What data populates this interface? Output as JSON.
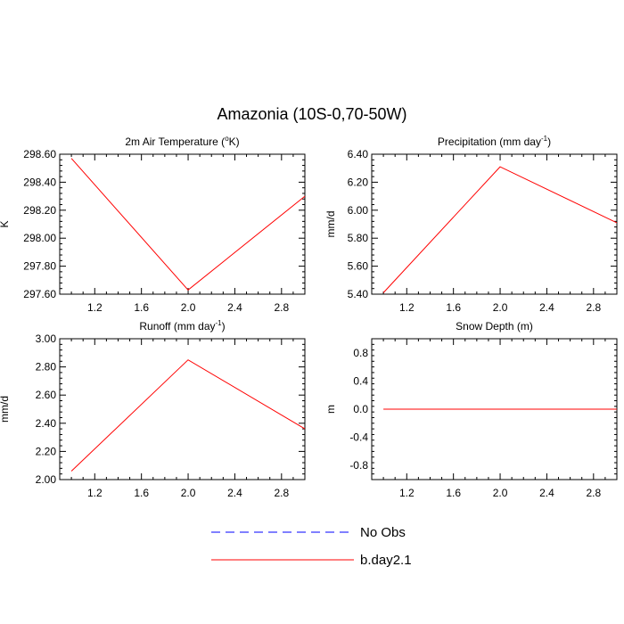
{
  "title": "Amazonia (10S-0,70-50W)",
  "chart_data": [
    {
      "type": "line",
      "title": "2m Air Temperature (°K)",
      "title_parts": [
        "2m Air Temperature (",
        "o",
        "K)"
      ],
      "ylabel": "K",
      "xlim": [
        0.9,
        3.0
      ],
      "ylim": [
        297.6,
        298.6
      ],
      "x_ticks": [
        1.2,
        1.6,
        2.0,
        2.4,
        2.8
      ],
      "x_tick_labels": [
        "1.2",
        "1.6",
        "2.0",
        "2.4",
        "2.8"
      ],
      "y_ticks": [
        297.6,
        297.8,
        298.0,
        298.2,
        298.4,
        298.6
      ],
      "y_tick_labels": [
        "297.60",
        "297.80",
        "298.00",
        "298.20",
        "298.40",
        "298.60"
      ],
      "series": [
        {
          "name": "b.day2.1",
          "color": "#ff0000",
          "x": [
            1.0,
            2.0,
            3.0
          ],
          "y": [
            298.57,
            297.63,
            298.3
          ]
        }
      ]
    },
    {
      "type": "line",
      "title": "Precipitation (mm day-1)",
      "title_parts": [
        "Precipitation (mm day",
        "-1",
        ")"
      ],
      "ylabel": "mm/d",
      "xlim": [
        0.9,
        3.0
      ],
      "ylim": [
        5.4,
        6.4
      ],
      "x_ticks": [
        1.2,
        1.6,
        2.0,
        2.4,
        2.8
      ],
      "x_tick_labels": [
        "1.2",
        "1.6",
        "2.0",
        "2.4",
        "2.8"
      ],
      "y_ticks": [
        5.4,
        5.6,
        5.8,
        6.0,
        6.2,
        6.4
      ],
      "y_tick_labels": [
        "5.40",
        "5.60",
        "5.80",
        "6.00",
        "6.20",
        "6.40"
      ],
      "series": [
        {
          "name": "b.day2.1",
          "color": "#ff0000",
          "x": [
            1.0,
            2.0,
            3.0
          ],
          "y": [
            5.41,
            6.31,
            5.91
          ]
        }
      ]
    },
    {
      "type": "line",
      "title": "Runoff (mm day-1)",
      "title_parts": [
        "Runoff (mm day",
        "-1",
        ")"
      ],
      "ylabel": "mm/d",
      "xlim": [
        0.9,
        3.0
      ],
      "ylim": [
        2.0,
        3.0
      ],
      "x_ticks": [
        1.2,
        1.6,
        2.0,
        2.4,
        2.8
      ],
      "x_tick_labels": [
        "1.2",
        "1.6",
        "2.0",
        "2.4",
        "2.8"
      ],
      "y_ticks": [
        2.0,
        2.2,
        2.4,
        2.6,
        2.8,
        3.0
      ],
      "y_tick_labels": [
        "2.00",
        "2.20",
        "2.40",
        "2.60",
        "2.80",
        "3.00"
      ],
      "series": [
        {
          "name": "b.day2.1",
          "color": "#ff0000",
          "x": [
            1.0,
            2.0,
            3.0
          ],
          "y": [
            2.06,
            2.85,
            2.36
          ]
        }
      ]
    },
    {
      "type": "line",
      "title": "Snow Depth (m)",
      "title_parts": [
        "Snow Depth (m)",
        "",
        ""
      ],
      "ylabel": "m",
      "xlim": [
        0.9,
        3.0
      ],
      "ylim": [
        -1.0,
        1.0
      ],
      "x_ticks": [
        1.2,
        1.6,
        2.0,
        2.4,
        2.8
      ],
      "x_tick_labels": [
        "1.2",
        "1.6",
        "2.0",
        "2.4",
        "2.8"
      ],
      "y_ticks": [
        -0.8,
        -0.4,
        0.0,
        0.4,
        0.8
      ],
      "y_tick_labels": [
        "-0.8",
        "-0.4",
        "0.0",
        "0.4",
        "0.8"
      ],
      "series": [
        {
          "name": "b.day2.1",
          "color": "#ff0000",
          "x": [
            1.0,
            2.0,
            3.0
          ],
          "y": [
            0.0,
            0.0,
            0.0
          ]
        }
      ]
    }
  ],
  "legend": [
    {
      "label": "No Obs",
      "color": "#0000ff",
      "style": "dashed"
    },
    {
      "label": "b.day2.1",
      "color": "#ff0000",
      "style": "solid"
    }
  ]
}
